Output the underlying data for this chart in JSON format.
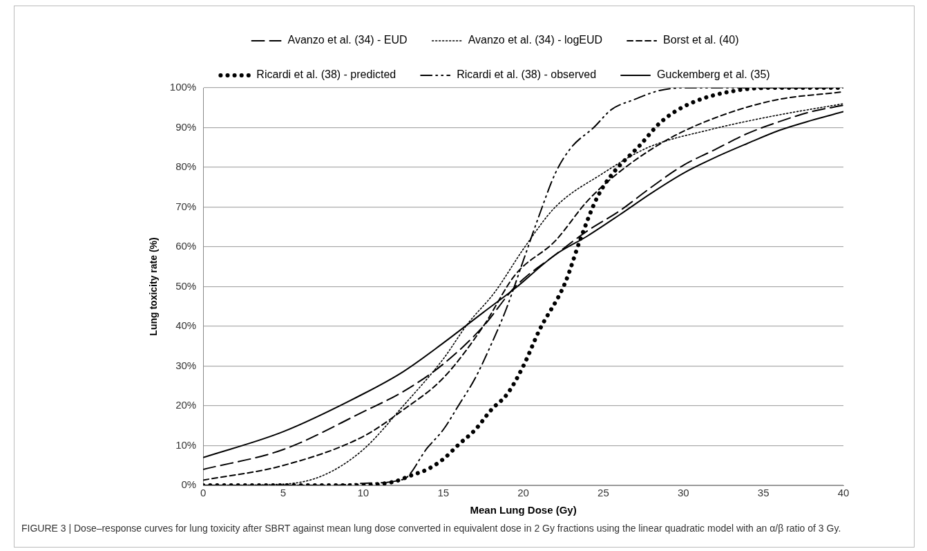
{
  "chart_data": {
    "type": "line",
    "xlabel": "Mean Lung Dose (Gy)",
    "ylabel": "Lung toxicity rate (%)",
    "xlim": [
      0,
      40
    ],
    "xticks": [
      0,
      5,
      10,
      15,
      20,
      25,
      30,
      35,
      40
    ],
    "ylim": [
      0,
      100
    ],
    "yticks": [
      {
        "value": 0,
        "label": "0%"
      },
      {
        "value": 10,
        "label": "10%"
      },
      {
        "value": 20,
        "label": "20%"
      },
      {
        "value": 30,
        "label": "30%"
      },
      {
        "value": 40,
        "label": "40%"
      },
      {
        "value": 50,
        "label": "50%"
      },
      {
        "value": 60,
        "label": "60%"
      },
      {
        "value": 70,
        "label": "70%"
      },
      {
        "value": 80,
        "label": "80%"
      },
      {
        "value": 90,
        "label": "90%"
      },
      {
        "value": 100,
        "label": "100%"
      }
    ],
    "grid": "y",
    "legend": "top",
    "marker": "none",
    "series": [
      {
        "name": "Avanzo et al. (34) - EUD",
        "color": "#000000",
        "line_style": "longdash",
        "x": [
          0,
          5,
          10,
          12.5,
          15,
          17.5,
          19.5,
          22,
          24,
          26,
          28,
          30,
          32,
          34,
          36,
          38,
          40
        ],
        "values": [
          4,
          9,
          18.5,
          23.6,
          30.5,
          40,
          50,
          58,
          64,
          69,
          75,
          80.5,
          84.5,
          88.5,
          91.5,
          94,
          95.6
        ]
      },
      {
        "name": "Avanzo et al. (34) - logEUD",
        "color": "#000000",
        "line_style": "dotted",
        "x": [
          0,
          5,
          7.5,
          10,
          12.5,
          15,
          16.5,
          18.2,
          20.1,
          22,
          24.9,
          27.8,
          31.7,
          35.6,
          40
        ],
        "values": [
          0,
          0.3,
          2.5,
          9,
          20,
          31.8,
          40.5,
          48.5,
          60,
          70,
          78.3,
          85,
          89.5,
          92.9,
          96
        ]
      },
      {
        "name": "Borst et al. (40)",
        "color": "#000000",
        "line_style": "dashed",
        "x": [
          0,
          5,
          10,
          12.5,
          15,
          17.5,
          19.5,
          22,
          24,
          25.9,
          28.8,
          31.7,
          35.6,
          40
        ],
        "values": [
          1.3,
          5,
          12.3,
          19,
          27,
          40,
          53,
          61.5,
          71.5,
          78.5,
          86.5,
          92,
          96.8,
          99
        ]
      },
      {
        "name": "Ricardi et al. (38) - predicted",
        "color": "#000000",
        "line_style": "heavydotted",
        "x": [
          0,
          10,
          11,
          12,
          13,
          14,
          15,
          16,
          17,
          18,
          19,
          20,
          21,
          22.6,
          23.6,
          24.6,
          25.5,
          27.3,
          28.6,
          30.4,
          33.6,
          36,
          40
        ],
        "values": [
          0,
          0,
          0.3,
          1,
          2.5,
          4,
          6.6,
          10.4,
          14,
          19,
          23,
          30,
          39,
          50.8,
          62.3,
          72.3,
          78,
          85.6,
          91.4,
          96,
          99.5,
          100,
          100
        ]
      },
      {
        "name": "Ricardi et al. (38) - observed",
        "color": "#000000",
        "line_style": "dashdot",
        "x": [
          0,
          8,
          10,
          12.5,
          14,
          15,
          16,
          17,
          18,
          18.9,
          20.1,
          21,
          22,
          23,
          24.4,
          25.5,
          26.9,
          28.5,
          30,
          40
        ],
        "values": [
          0,
          0,
          0.5,
          1.5,
          9.4,
          14,
          20.4,
          27,
          35.5,
          44,
          57.7,
          68,
          78.5,
          85,
          90,
          94.5,
          97,
          99.3,
          100,
          100
        ]
      },
      {
        "name": "Guckemberg et al. (35)",
        "color": "#000000",
        "line_style": "solid",
        "x": [
          0,
          5,
          10,
          12.5,
          15,
          17.5,
          19.5,
          22,
          24,
          26,
          28,
          30,
          32,
          34,
          36,
          38,
          40
        ],
        "values": [
          7,
          13.5,
          23,
          28.6,
          35.8,
          43.5,
          49.6,
          58,
          62.7,
          68,
          73.5,
          78.5,
          82.5,
          86,
          89.3,
          91.8,
          94
        ]
      }
    ],
    "annotations": [
      "FIGURE 3 | Dose–response curves for lung toxicity after SBRT against mean lung dose converted in equivalent dose in 2 Gy fractions using the linear quadratic model with an α/β ratio of 3 Gy."
    ]
  }
}
